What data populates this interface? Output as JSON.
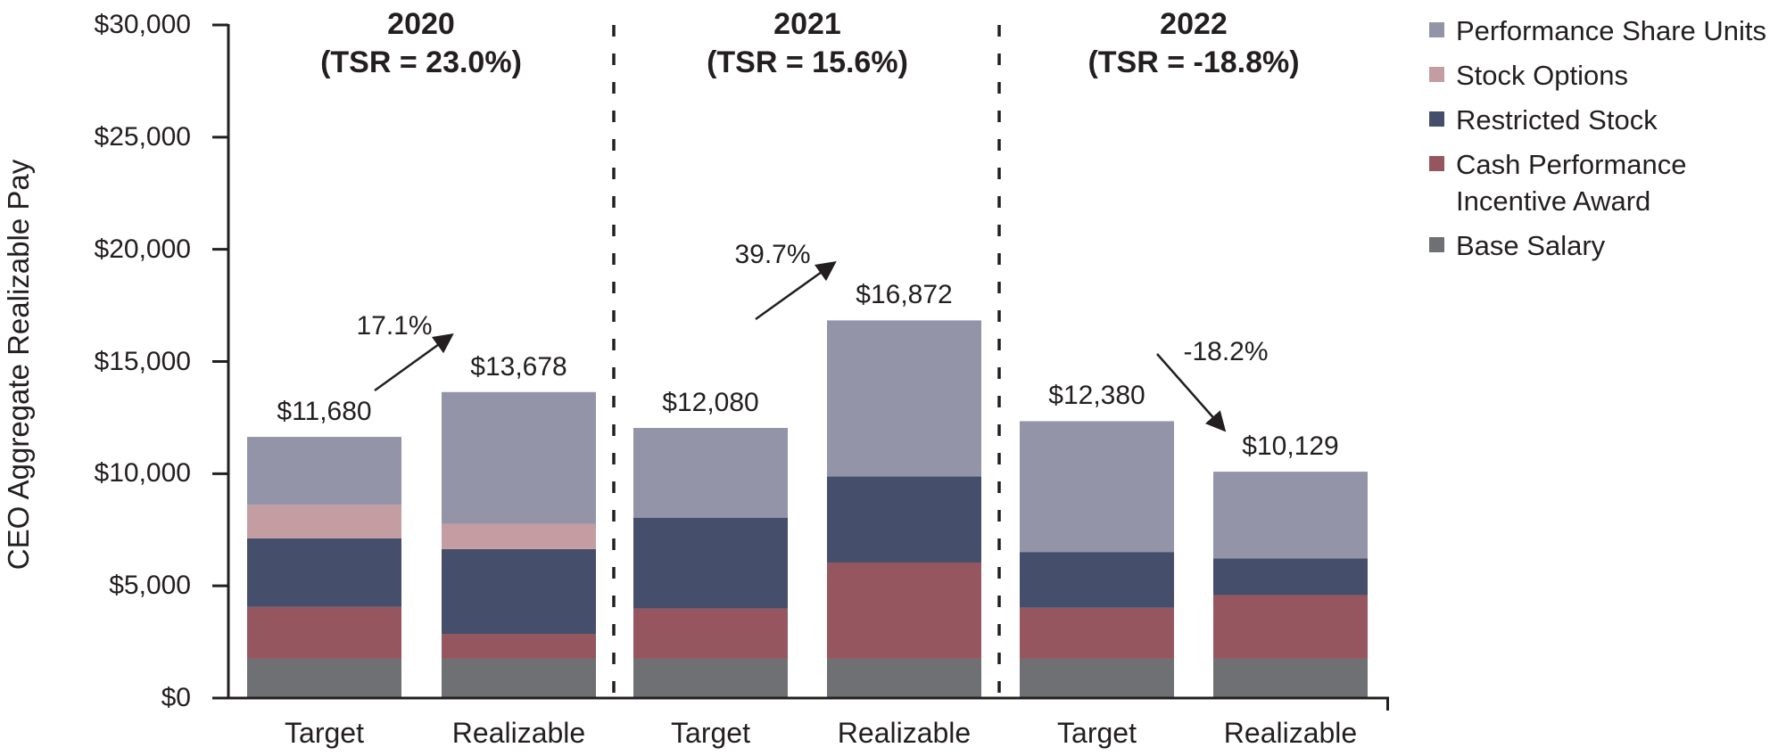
{
  "chart_data": {
    "type": "bar",
    "stacked": true,
    "title": "",
    "ylabel": "CEO Aggregate Realizable Pay",
    "xlabel": "",
    "ylim": [
      0,
      30000
    ],
    "grid": false,
    "legend_position": "top-right",
    "text_color": "#231f20",
    "y_ticks": [
      {
        "value": 0,
        "label": "$0"
      },
      {
        "value": 5000,
        "label": "$5,000"
      },
      {
        "value": 10000,
        "label": "$10,000"
      },
      {
        "value": 15000,
        "label": "$15,000"
      },
      {
        "value": 20000,
        "label": "$20,000"
      },
      {
        "value": 25000,
        "label": "$25,000"
      },
      {
        "value": 30000,
        "label": "$30,000"
      }
    ],
    "segment_order": [
      "base_salary",
      "cash_performance_incentive_award",
      "restricted_stock",
      "stock_options",
      "performance_share_units"
    ],
    "series_colors": {
      "performance_share_units": "#9394a8",
      "stock_options": "#c49da3",
      "restricted_stock": "#454f6b",
      "cash_performance_incentive_award": "#96565f",
      "base_salary": "#6e7073"
    },
    "groups": [
      {
        "year": "2020",
        "tsr_label": "(TSR = 23.0%)",
        "change_label": "17.1%",
        "change_direction": "up",
        "bars": [
          {
            "label": "Target",
            "total": 11680,
            "total_label": "$11,680",
            "segments": {
              "base_salary": 1790,
              "cash_performance_incentive_award": 2310,
              "restricted_stock": 3060,
              "stock_options": 1490,
              "performance_share_units": 3030
            }
          },
          {
            "label": "Realizable",
            "total": 13678,
            "total_label": "$13,678",
            "segments": {
              "base_salary": 1790,
              "cash_performance_incentive_award": 1110,
              "restricted_stock": 3780,
              "stock_options": 1130,
              "performance_share_units": 5868
            }
          }
        ]
      },
      {
        "year": "2021",
        "tsr_label": "(TSR = 15.6%)",
        "change_label": "39.7%",
        "change_direction": "up",
        "bars": [
          {
            "label": "Target",
            "total": 12080,
            "total_label": "$12,080",
            "segments": {
              "base_salary": 1790,
              "cash_performance_incentive_award": 2240,
              "restricted_stock": 4050,
              "stock_options": 0,
              "performance_share_units": 4000
            }
          },
          {
            "label": "Realizable",
            "total": 16872,
            "total_label": "$16,872",
            "segments": {
              "base_salary": 1790,
              "cash_performance_incentive_award": 4290,
              "restricted_stock": 3840,
              "stock_options": 0,
              "performance_share_units": 6952
            }
          }
        ]
      },
      {
        "year": "2022",
        "tsr_label": "(TSR = -18.8%)",
        "change_label": "-18.2%",
        "change_direction": "down",
        "bars": [
          {
            "label": "Target",
            "total": 12380,
            "total_label": "$12,380",
            "segments": {
              "base_salary": 1790,
              "cash_performance_incentive_award": 2270,
              "restricted_stock": 2490,
              "stock_options": 0,
              "performance_share_units": 5830
            }
          },
          {
            "label": "Realizable",
            "total": 10129,
            "total_label": "$10,129",
            "segments": {
              "base_salary": 1790,
              "cash_performance_incentive_award": 2840,
              "restricted_stock": 1630,
              "stock_options": 0,
              "performance_share_units": 3869
            }
          }
        ]
      }
    ],
    "legend": [
      {
        "key": "performance_share_units",
        "lines": [
          "Performance Share Units"
        ],
        "color": "#9394a8"
      },
      {
        "key": "stock_options",
        "lines": [
          "Stock Options"
        ],
        "color": "#c49da3"
      },
      {
        "key": "restricted_stock",
        "lines": [
          "Restricted Stock"
        ],
        "color": "#454f6b"
      },
      {
        "key": "cash_performance_incentive_award",
        "lines": [
          "Cash Performance",
          "Incentive Award"
        ],
        "color": "#96565f"
      },
      {
        "key": "base_salary",
        "lines": [
          "Base Salary"
        ],
        "color": "#6e7073"
      }
    ]
  }
}
